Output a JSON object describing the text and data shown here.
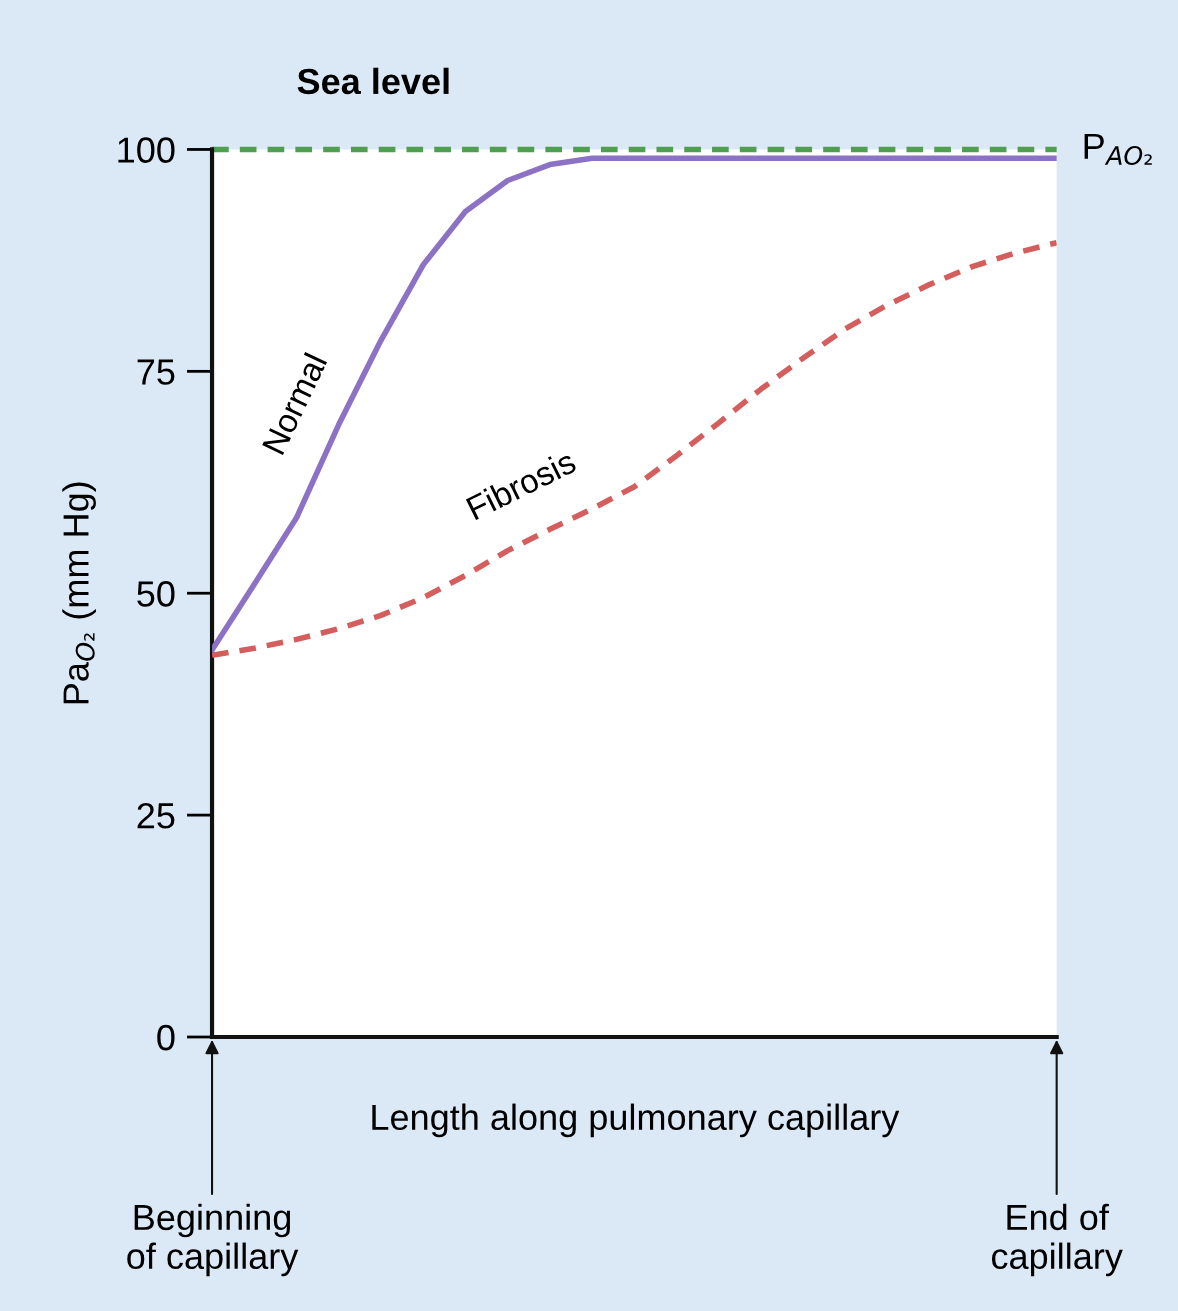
{
  "chart_data": {
    "type": "line",
    "title": "Sea level",
    "xlabel": "Length along pulmonary capillary",
    "ylabel": "Pa$_{O₂}$ (mm Hg)",
    "categories": [
      "Beginning\nof capillary",
      null,
      null,
      null,
      null,
      null,
      null,
      null,
      null,
      null,
      null,
      null,
      null,
      null,
      null,
      null,
      null,
      null,
      null,
      null,
      "End of\ncapillary"
    ],
    "ylim": [
      0,
      100
    ],
    "yticks": [
      0,
      25,
      50,
      75,
      100
    ],
    "grid": false,
    "legend": false,
    "marker": "none",
    "series": [
      {
        "name": "Normal",
        "color": "#8c72c4",
        "line_style": "solid",
        "values": [
          43.6,
          51,
          58.5,
          69,
          78.5,
          87,
          93,
          96.5,
          98.3,
          99,
          99,
          99,
          99,
          99,
          99,
          99,
          99,
          99,
          99,
          99,
          99
        ]
      },
      {
        "name": "Fibrosis",
        "color": "#d45d5d",
        "line_style": "dashed",
        "values": [
          43,
          43.8,
          44.8,
          46,
          47.5,
          49.5,
          52,
          54.8,
          57.2,
          59.5,
          62,
          65.5,
          69.2,
          73,
          76.5,
          79.8,
          82.5,
          84.8,
          86.8,
          88.3,
          89.5
        ]
      }
    ],
    "ref_lines": [
      {
        "axis": "y",
        "value": 100,
        "label": "P$_{AO₂}$",
        "color": "#4f9f50",
        "line_style": "dashed"
      }
    ]
  }
}
